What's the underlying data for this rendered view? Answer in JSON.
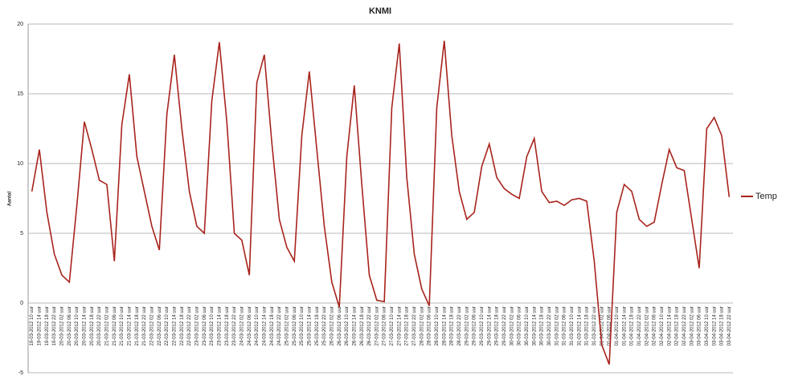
{
  "chart_data": {
    "type": "line",
    "title": "KNMI",
    "y_label": "Aantal",
    "categories": [
      "19-03-2012 10 uur",
      "19-03-2012 14 uur",
      "19-03-2012 18 uur",
      "19-03-2012 22 uur",
      "20-03-2012 02 uur",
      "20-03-2012 06 uur",
      "20-03-2012 10 uur",
      "20-03-2012 14 uur",
      "20-03-2012 18 uur",
      "20-03-2012 22 uur",
      "21-03-2012 02 uur",
      "21-03-2012 06 uur",
      "21-03-2012 10 uur",
      "21-03-2012 14 uur",
      "21-03-2012 18 uur",
      "21-03-2012 22 uur",
      "22-03-2012 02 uur",
      "22-03-2012 06 uur",
      "22-03-2012 10 uur",
      "22-03-2012 14 uur",
      "22-03-2012 18 uur",
      "22-03-2012 22 uur",
      "23-03-2012 02 uur",
      "23-03-2012 06 uur",
      "23-03-2012 10 uur",
      "23-03-2012 14 uur",
      "23-03-2012 18 uur",
      "23-03-2012 22 uur",
      "24-03-2012 02 uur",
      "24-03-2012 06 uur",
      "24-03-2012 10 uur",
      "24-03-2012 14 uur",
      "24-03-2012 18 uur",
      "24-03-2012 22 uur",
      "25-03-2012 02 uur",
      "25-03-2012 06 uur",
      "25-03-2012 10 uur",
      "25-03-2012 14 uur",
      "25-03-2012 18 uur",
      "25-03-2012 22 uur",
      "26-03-2012 02 uur",
      "26-03-2012 06 uur",
      "26-03-2012 10 uur",
      "26-03-2012 14 uur",
      "26-03-2012 18 uur",
      "26-03-2012 22 uur",
      "27-03-2012 02 uur",
      "27-03-2012 06 uur",
      "27-03-2012 10 uur",
      "27-03-2012 14 uur",
      "27-03-2012 18 uur",
      "27-03-2012 22 uur",
      "28-03-2012 02 uur",
      "28-03-2012 06 uur",
      "28-03-2012 10 uur",
      "28-03-2012 14 uur",
      "28-03-2012 18 uur",
      "28-03-2012 22 uur",
      "29-03-2012 02 uur",
      "29-03-2012 06 uur",
      "29-03-2012 10 uur",
      "29-03-2012 14 uur",
      "29-03-2012 18 uur",
      "29-03-2012 22 uur",
      "30-03-2012 02 uur",
      "30-03-2012 06 uur",
      "30-03-2012 10 uur",
      "30-03-2012 14 uur",
      "30-03-2012 18 uur",
      "30-03-2012 22 uur",
      "31-03-2012 02 uur",
      "31-03-2012 06 uur",
      "31-03-2012 10 uur",
      "31-03-2012 14 uur",
      "31-03-2012 18 uur",
      "31-03-2012 22 uur",
      "01-04-2012 02 uur",
      "01-04-2012 06 uur",
      "01-04-2012 10 uur",
      "01-04-2012 14 uur",
      "01-04-2012 18 uur",
      "01-04-2012 22 uur",
      "02-04-2012 02 uur",
      "02-04-2012 06 uur",
      "02-04-2012 10 uur",
      "02-04-2012 14 uur",
      "02-04-2012 18 uur",
      "02-04-2012 22 uur",
      "03-04-2012 02 uur",
      "03-04-2012 06 uur",
      "03-04-2012 10 uur",
      "03-04-2012 14 uur",
      "03-04-2012 18 uur",
      "03-04-2012 22 uur"
    ],
    "series": [
      {
        "name": "Temp",
        "color": "#a8231c",
        "values": [
          8.0,
          11.0,
          6.5,
          3.5,
          2.0,
          1.5,
          7.0,
          13.0,
          11.0,
          8.8,
          8.5,
          3.0,
          12.8,
          16.4,
          10.5,
          8.0,
          5.5,
          3.8,
          13.5,
          17.8,
          12.5,
          8.0,
          5.5,
          5.0,
          14.5,
          18.7,
          13.0,
          5.0,
          4.5,
          2.0,
          15.8,
          17.8,
          11.5,
          6.0,
          4.0,
          3.0,
          12.0,
          16.6,
          11.0,
          5.5,
          1.5,
          -0.3,
          10.5,
          15.6,
          8.5,
          2.0,
          0.2,
          0.1,
          14.0,
          18.6,
          9.0,
          3.5,
          1.0,
          -0.2,
          14.0,
          18.8,
          12.0,
          8.0,
          6.0,
          6.5,
          9.8,
          11.4,
          9.0,
          8.2,
          7.8,
          7.5,
          10.5,
          11.8,
          8.0,
          7.2,
          7.3,
          7.0,
          7.4,
          7.5,
          7.3,
          3.0,
          -3.0,
          -4.4,
          6.5,
          8.5,
          8.0,
          6.0,
          5.5,
          5.8,
          8.5,
          11.0,
          9.7,
          9.5,
          6.0,
          2.5,
          12.5,
          13.3,
          12.0,
          7.6
        ]
      }
    ],
    "ylim": [
      -5,
      20
    ],
    "yticks": [
      -5,
      0,
      5,
      10,
      15,
      20
    ],
    "grid": true,
    "legend": "right"
  }
}
